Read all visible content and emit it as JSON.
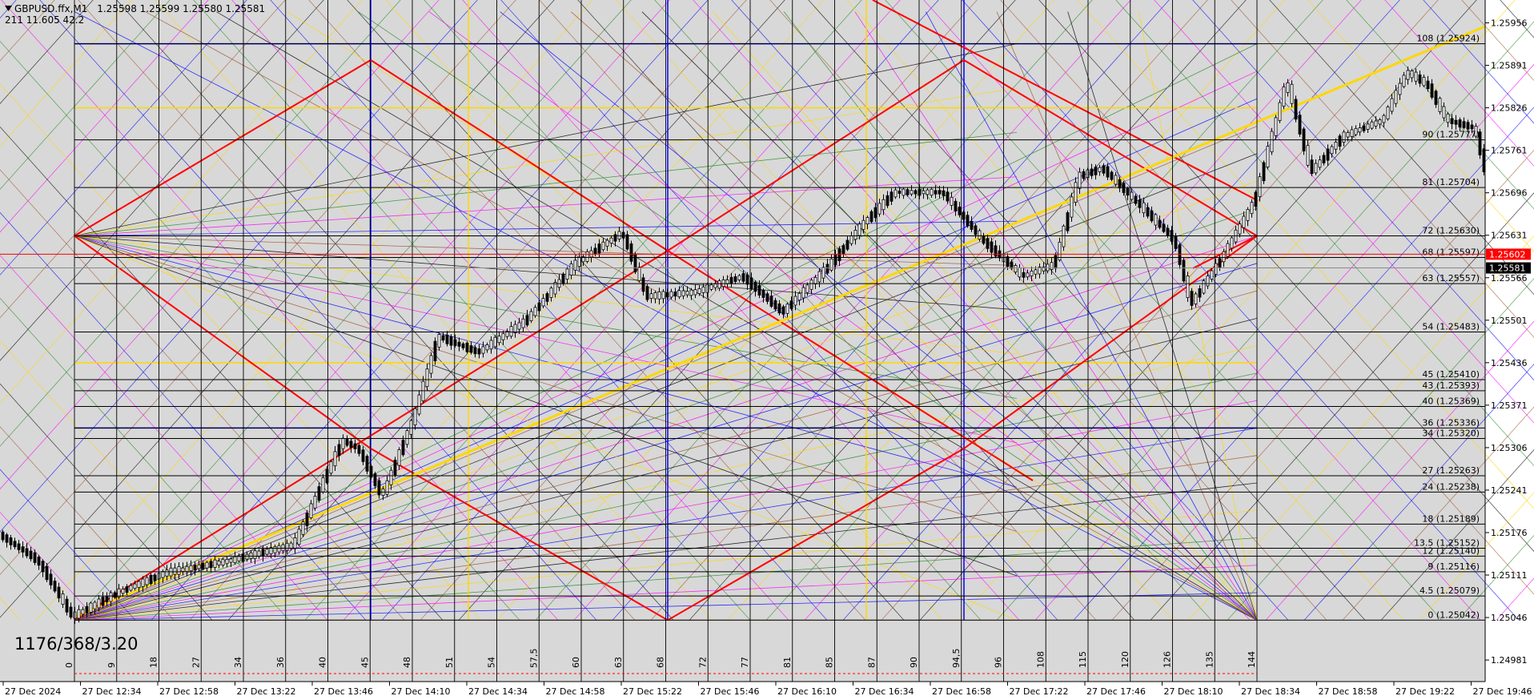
{
  "header": {
    "symbol": "GBPUSD.ffx,M1",
    "ohlc": "1.25598 1.25599 1.25580 1.25581",
    "indicator": "211  11.605  42.2"
  },
  "watermark": "1176/368/3.20",
  "chart_data": {
    "type": "candlestick",
    "symbol": "GBPUSD.ffx",
    "timeframe": "M1",
    "ylim": [
      1.24948,
      1.25991
    ],
    "price_ticks": [
      "1.25956",
      "1.25891",
      "1.25826",
      "1.25761",
      "1.25696",
      "1.25631",
      "1.25566",
      "1.25501",
      "1.25436",
      "1.25371",
      "1.25306",
      "1.25241",
      "1.25176",
      "1.25111",
      "1.25046",
      "1.24981"
    ],
    "time_ticks": [
      "27 Dec 2024",
      "27 Dec 12:34",
      "27 Dec 12:58",
      "27 Dec 13:22",
      "27 Dec 13:46",
      "27 Dec 14:10",
      "27 Dec 14:34",
      "27 Dec 14:58",
      "27 Dec 15:22",
      "27 Dec 15:46",
      "27 Dec 16:10",
      "27 Dec 16:34",
      "27 Dec 16:58",
      "27 Dec 17:22",
      "27 Dec 17:46",
      "27 Dec 18:10",
      "27 Dec 18:34",
      "27 Dec 18:58",
      "27 Dec 19:22",
      "27 Dec 19:46"
    ],
    "current_price": "1.25581",
    "marked_price": "1.25602",
    "gann_levels": [
      {
        "label": "108 (1.25924)",
        "price": 1.25924
      },
      {
        "label": "90 (1.25777)",
        "price": 1.25777
      },
      {
        "label": "81 (1.25704)",
        "price": 1.25704
      },
      {
        "label": "72 (1.25630)",
        "price": 1.2563
      },
      {
        "label": "68 (1.25597)",
        "price": 1.25597
      },
      {
        "label": "63 (1.25557)",
        "price": 1.25557
      },
      {
        "label": "54 (1.25483)",
        "price": 1.25483
      },
      {
        "label": "45 (1.25410)",
        "price": 1.2541
      },
      {
        "label": "43 (1.25393)",
        "price": 1.25393
      },
      {
        "label": "40 (1.25369)",
        "price": 1.25369
      },
      {
        "label": "36 (1.25336)",
        "price": 1.25336
      },
      {
        "label": "34 (1.25320)",
        "price": 1.2532
      },
      {
        "label": "27 (1.25263)",
        "price": 1.25263
      },
      {
        "label": "24 (1.25238)",
        "price": 1.25238
      },
      {
        "label": "18 (1.25189)",
        "price": 1.25189
      },
      {
        "label": "13.5 (1.25152)",
        "price": 1.25152
      },
      {
        "label": "12 (1.25140)",
        "price": 1.2514
      },
      {
        "label": "9 (1.25116)",
        "price": 1.25116
      },
      {
        "label": "4.5 (1.25079)",
        "price": 1.25079
      },
      {
        "label": "0 (1.25042)",
        "price": 1.25042
      }
    ],
    "time_cycle_labels": [
      "0",
      "9",
      "18",
      "27",
      "34",
      "36",
      "40",
      "45",
      "48",
      "51",
      "54",
      "57,5",
      "60",
      "63",
      "68",
      "72",
      "77",
      "81",
      "85",
      "87",
      "90",
      "94,5",
      "96",
      "108",
      "115",
      "120",
      "126",
      "135",
      "144"
    ],
    "colors": {
      "background": "#d8d8d8",
      "panel": "#ffffff",
      "red": "#ff0000",
      "gold": "#ffd700",
      "blue": "#0000ff",
      "green": "#228b22",
      "magenta": "#ff00ff",
      "brown": "#a0522d",
      "black": "#000000",
      "marked_price_bg": "#ff0000",
      "current_price_bg": "#000000"
    }
  }
}
